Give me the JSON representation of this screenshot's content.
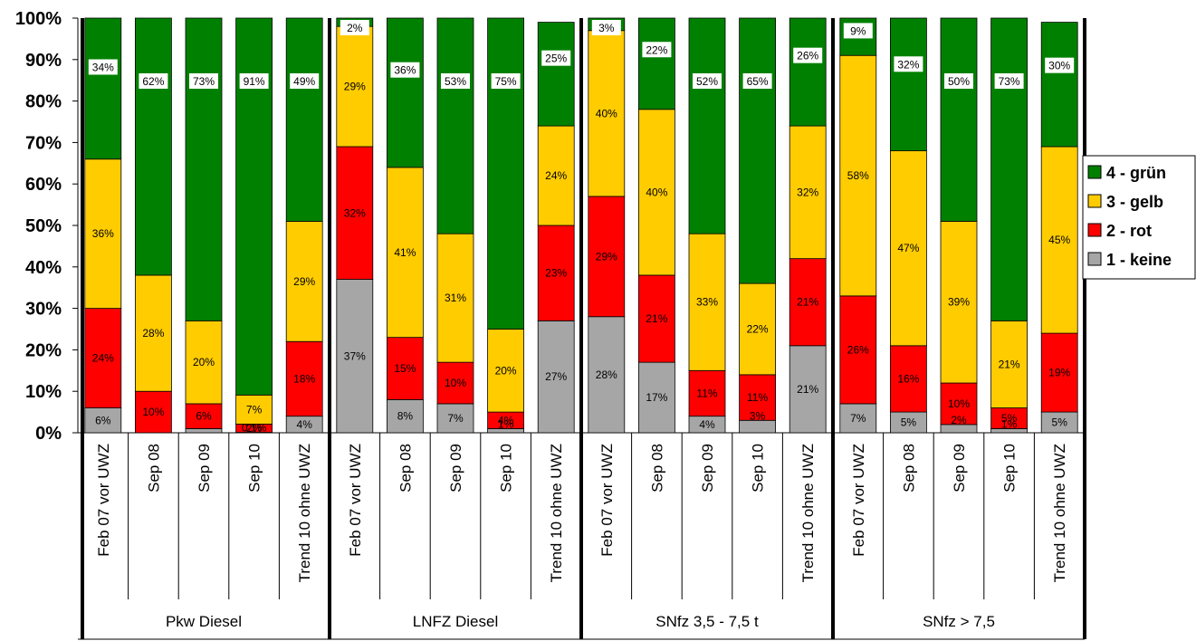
{
  "chart_data": {
    "type": "bar",
    "stacked": true,
    "percent": true,
    "ylim": [
      0,
      100
    ],
    "y_ticks": [
      "0%",
      "10%",
      "20%",
      "30%",
      "40%",
      "50%",
      "60%",
      "70%",
      "80%",
      "90%",
      "100%"
    ],
    "groups": [
      {
        "name": "Pkw Diesel",
        "categories": [
          "Feb 07 vor UWZ",
          "Sep 08",
          "Sep 09",
          "Sep 10",
          "Trend 10 ohne UWZ"
        ]
      },
      {
        "name": "LNFZ Diesel",
        "categories": [
          "Feb 07 vor UWZ",
          "Sep 08",
          "Sep 09",
          "Sep 10",
          "Trend 10 ohne UWZ"
        ]
      },
      {
        "name": "SNfz 3,5 - 7,5 t",
        "categories": [
          "Feb 07 vor UWZ",
          "Sep 08",
          "Sep 09",
          "Sep 10",
          "Trend 10 ohne UWZ"
        ]
      },
      {
        "name": "SNfz > 7,5",
        "categories": [
          "Feb 07 vor UWZ",
          "Sep 08",
          "Sep 09",
          "Sep 10",
          "Trend 10 ohne UWZ"
        ]
      }
    ],
    "series": [
      {
        "name": "1 - keine",
        "color": "#a6a6a6",
        "values": [
          6,
          0,
          1,
          0.1,
          4,
          37,
          8,
          7,
          1,
          27,
          28,
          17,
          4,
          3,
          21,
          7,
          5,
          2,
          1,
          5
        ],
        "labels": [
          "6%",
          "",
          "",
          "0,1%",
          "4%",
          "37%",
          "8%",
          "7%",
          "1%",
          "27%",
          "28%",
          "17%",
          "4%",
          "3%",
          "21%",
          "7%",
          "5%",
          "2%",
          "1%",
          "5%"
        ]
      },
      {
        "name": "2 - rot",
        "color": "#ff0000",
        "values": [
          24,
          10,
          6,
          2,
          18,
          32,
          15,
          10,
          4,
          23,
          29,
          21,
          11,
          11,
          21,
          26,
          16,
          10,
          5,
          19
        ],
        "labels": [
          "24%",
          "10%",
          "6%",
          "2%",
          "18%",
          "32%",
          "15%",
          "10%",
          "4%",
          "23%",
          "29%",
          "21%",
          "11%",
          "11%",
          "21%",
          "26%",
          "16%",
          "10%",
          "5%",
          "19%"
        ]
      },
      {
        "name": "3 - gelb",
        "color": "#ffcc00",
        "values": [
          36,
          28,
          20,
          7,
          29,
          29,
          41,
          31,
          20,
          24,
          40,
          40,
          33,
          22,
          32,
          58,
          47,
          39,
          21,
          45
        ],
        "labels": [
          "36%",
          "28%",
          "20%",
          "7%",
          "29%",
          "29%",
          "41%",
          "31%",
          "20%",
          "24%",
          "40%",
          "40%",
          "33%",
          "22%",
          "32%",
          "58%",
          "47%",
          "39%",
          "21%",
          "45%"
        ]
      },
      {
        "name": "4 - grün",
        "color": "#008000",
        "values": [
          34,
          62,
          73,
          91,
          49,
          2,
          36,
          53,
          75,
          25,
          3,
          22,
          52,
          65,
          26,
          9,
          32,
          50,
          73,
          30
        ],
        "labels": [
          "34%",
          "62%",
          "73%",
          "91%",
          "49%",
          "2%",
          "36%",
          "53%",
          "75%",
          "25%",
          "3%",
          "22%",
          "52%",
          "65%",
          "26%",
          "9%",
          "32%",
          "50%",
          "73%",
          "30%"
        ]
      }
    ],
    "legend": {
      "position": "right",
      "items": [
        {
          "label": "4 - grün",
          "color": "#008000"
        },
        {
          "label": "3 - gelb",
          "color": "#ffcc00"
        },
        {
          "label": "2 - rot",
          "color": "#ff0000"
        },
        {
          "label": "1 - keine",
          "color": "#a6a6a6"
        }
      ]
    }
  }
}
